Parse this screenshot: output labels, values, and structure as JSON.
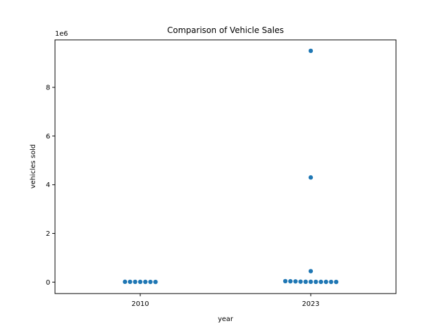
{
  "chart_data": {
    "type": "scatter",
    "subtype": "swarm",
    "title": "Comparison of Vehicle Sales",
    "xlabel": "year",
    "ylabel": "vehicles sold",
    "y_offset_text": "1e6",
    "categories": [
      "2010",
      "2023"
    ],
    "ylim": [
      -470000,
      9950000
    ],
    "yticks": [
      0,
      2000000,
      4000000,
      6000000,
      8000000
    ],
    "ytick_labels": [
      "0",
      "2",
      "4",
      "6",
      "8"
    ],
    "grid": false,
    "legend": false,
    "point_color": "#1f77b4",
    "series": [
      {
        "category": "2010",
        "values": [
          8000,
          9000,
          10000,
          11000,
          12000,
          13000,
          14000
        ]
      },
      {
        "category": "2023",
        "values": [
          9500000,
          4300000,
          450000,
          30000,
          20000,
          15000,
          12000,
          10000,
          9000,
          8000,
          11000,
          14000,
          35000,
          40000
        ]
      }
    ]
  }
}
